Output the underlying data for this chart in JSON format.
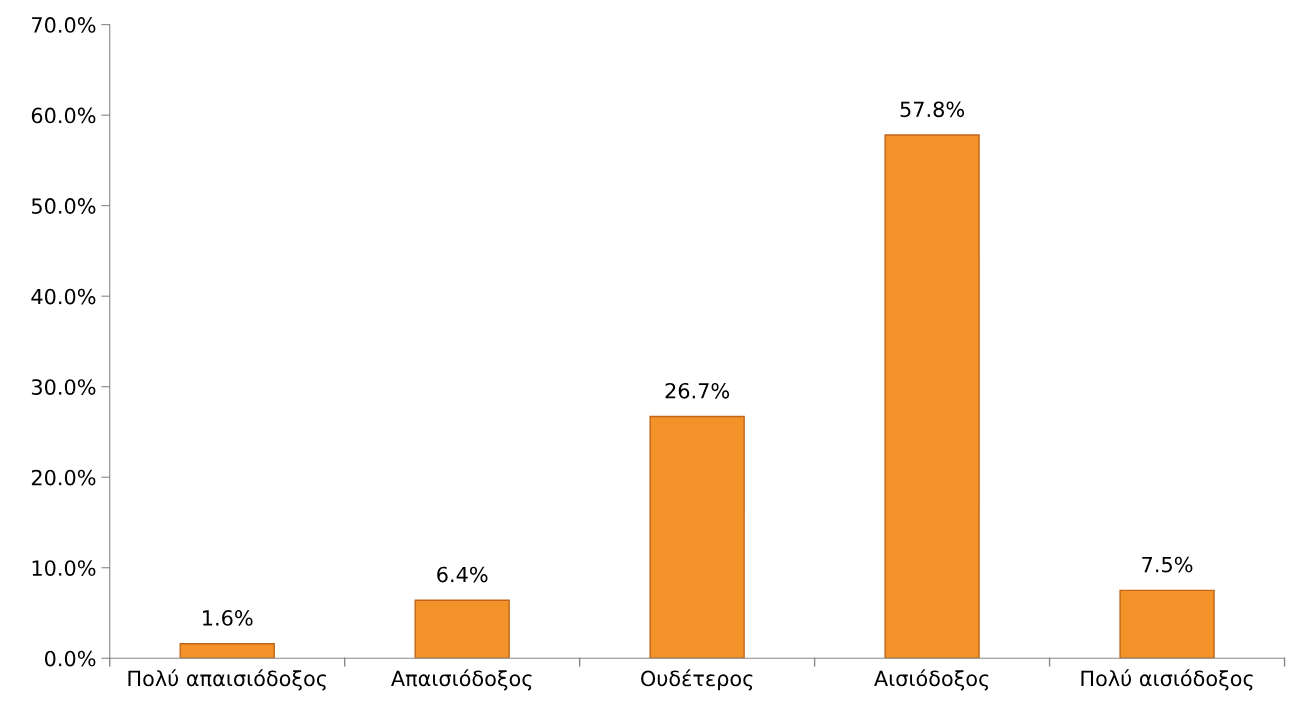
{
  "chart_data": {
    "type": "bar",
    "categories": [
      "Πολύ απαισιόδοξος",
      "Απαισιόδοξος",
      "Ουδέτερος",
      "Αισιόδοξος",
      "Πολύ αισιόδοξος"
    ],
    "values": [
      1.6,
      6.4,
      26.7,
      57.8,
      7.5
    ],
    "value_labels": [
      "1.6%",
      "6.4%",
      "26.7%",
      "57.8%",
      "7.5%"
    ],
    "color": "#f39229",
    "ylim": [
      0,
      70
    ],
    "yticks": [
      {
        "value": 0,
        "label": "0.0%"
      },
      {
        "value": 10,
        "label": "10.0%"
      },
      {
        "value": 20,
        "label": "20.0%"
      },
      {
        "value": 30,
        "label": "30.0%"
      },
      {
        "value": 40,
        "label": "40.0%"
      },
      {
        "value": 50,
        "label": "50.0%"
      },
      {
        "value": 60,
        "label": "60.0%"
      },
      {
        "value": 70,
        "label": "70.0%"
      }
    ],
    "grid": false,
    "legend": false
  }
}
